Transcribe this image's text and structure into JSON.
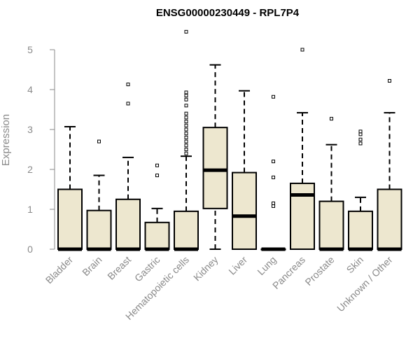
{
  "chart_data": {
    "type": "boxplot",
    "title": "ENSG00000230449 - RPL7P4",
    "xlabel": "",
    "ylabel": "Expression",
    "ylim": [
      0,
      5.5
    ],
    "yticks": [
      0,
      1,
      2,
      3,
      4,
      5
    ],
    "grid": false,
    "colors": {
      "box_fill": "#ede7cf",
      "stroke": "#000000",
      "axis": "#8a8a8a"
    },
    "categories": [
      "Bladder",
      "Brain",
      "Breast",
      "Gastric",
      "Hematopoietic cells",
      "Kidney",
      "Liver",
      "Lung",
      "Pancreas",
      "Prostate",
      "Skin",
      "Unknown / Other"
    ],
    "boxes": [
      {
        "category": "Bladder",
        "min": 0,
        "q1": 0,
        "median": 0,
        "q3": 1.5,
        "max": 3.07,
        "outliers": []
      },
      {
        "category": "Brain",
        "min": 0,
        "q1": 0,
        "median": 0,
        "q3": 0.97,
        "max": 1.85,
        "outliers": [
          2.7
        ]
      },
      {
        "category": "Breast",
        "min": 0,
        "q1": 0,
        "median": 0,
        "q3": 1.25,
        "max": 2.3,
        "outliers": [
          3.65,
          4.13
        ]
      },
      {
        "category": "Gastric",
        "min": 0,
        "q1": 0,
        "median": 0,
        "q3": 0.67,
        "max": 1.02,
        "outliers": [
          1.85,
          2.1
        ]
      },
      {
        "category": "Hematopoietic cells",
        "min": 0,
        "q1": 0,
        "median": 0,
        "q3": 0.95,
        "max": 2.33,
        "outliers": [
          2.4,
          2.5,
          2.6,
          2.7,
          2.8,
          2.9,
          3.0,
          3.1,
          3.2,
          3.3,
          3.4,
          3.6,
          3.75,
          3.85,
          3.93,
          5.45
        ]
      },
      {
        "category": "Kidney",
        "min": 0,
        "q1": 1.02,
        "median": 1.98,
        "q3": 3.05,
        "max": 4.62,
        "outliers": []
      },
      {
        "category": "Liver",
        "min": 0,
        "q1": 0,
        "median": 0.83,
        "q3": 1.92,
        "max": 3.97,
        "outliers": []
      },
      {
        "category": "Lung",
        "min": 0,
        "q1": 0,
        "median": 0,
        "q3": 0,
        "max": 0,
        "outliers": [
          1.08,
          1.15,
          1.8,
          2.2,
          3.82
        ]
      },
      {
        "category": "Pancreas",
        "min": 0,
        "q1": 0,
        "median": 1.36,
        "q3": 1.65,
        "max": 3.42,
        "outliers": [
          5.0
        ]
      },
      {
        "category": "Prostate",
        "min": 0,
        "q1": 0,
        "median": 0,
        "q3": 1.2,
        "max": 2.62,
        "outliers": [
          3.27
        ]
      },
      {
        "category": "Skin",
        "min": 0,
        "q1": 0,
        "median": 0,
        "q3": 0.95,
        "max": 1.3,
        "outliers": [
          2.65,
          2.75,
          2.88,
          2.95
        ]
      },
      {
        "category": "Unknown / Other",
        "min": 0,
        "q1": 0,
        "median": 0,
        "q3": 1.5,
        "max": 3.42,
        "outliers": [
          4.22
        ]
      }
    ]
  }
}
